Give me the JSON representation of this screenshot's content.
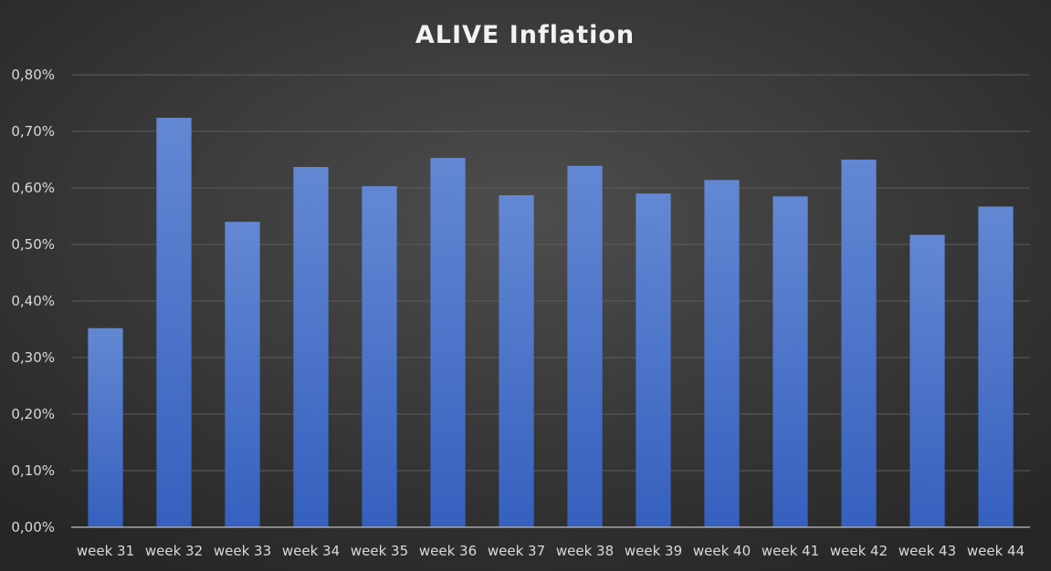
{
  "chart_data": {
    "type": "bar",
    "title": "ALIVE Inflation",
    "xlabel": "",
    "ylabel": "",
    "categories": [
      "week 31",
      "week 32",
      "week 33",
      "week 34",
      "week 35",
      "week 36",
      "week 37",
      "week 38",
      "week 39",
      "week 40",
      "week 41",
      "week 42",
      "week 43",
      "week 44"
    ],
    "values": [
      0.352,
      0.724,
      0.54,
      0.637,
      0.603,
      0.653,
      0.587,
      0.639,
      0.59,
      0.614,
      0.585,
      0.65,
      0.517,
      0.567
    ],
    "ylim": [
      0,
      0.8
    ],
    "yticks": [
      0.0,
      0.1,
      0.2,
      0.3,
      0.4,
      0.5,
      0.6,
      0.7,
      0.8
    ],
    "ytick_labels": [
      "0,00%",
      "0,10%",
      "0,20%",
      "0,30%",
      "0,40%",
      "0,50%",
      "0,60%",
      "0,70%",
      "0,80%"
    ],
    "value_unit": "%",
    "grid": true,
    "legend": "none"
  },
  "colors": {
    "background_center": "#4d4d4d",
    "background_edge": "#262626",
    "bar_top": "#6388d3",
    "bar_bottom": "#3560be",
    "gridline": "#5c5c5c",
    "axis_line": "#a6a6a6",
    "text": "#d9d9d9",
    "title": "#f2f2f2"
  }
}
